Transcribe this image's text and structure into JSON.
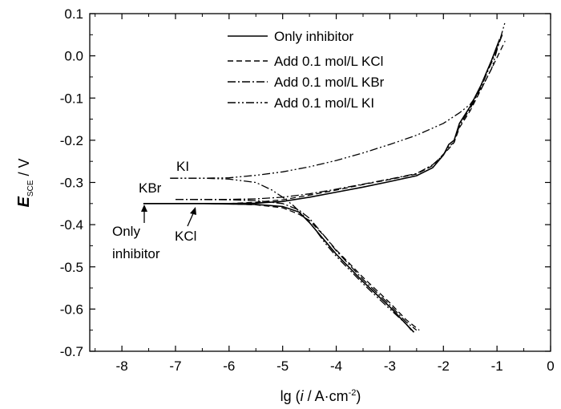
{
  "chart_data": {
    "type": "line",
    "xlabel_prefix": "lg (",
    "xlabel_italic": "i",
    "xlabel_mid": " / A·cm",
    "xlabel_sup": "-2",
    "xlabel_suffix": ")",
    "ylabel_main": "E",
    "ylabel_sub": "SCE",
    "ylabel_suffix": " / V",
    "xlim": [
      -8.6,
      0
    ],
    "ylim": [
      -0.7,
      0.1
    ],
    "xticks": [
      -8,
      -7,
      -6,
      -5,
      -4,
      -3,
      -2,
      -1,
      0
    ],
    "yticks": [
      0.1,
      0.0,
      -0.1,
      -0.2,
      -0.3,
      -0.4,
      -0.5,
      -0.6,
      -0.7
    ],
    "xtick_labels": [
      "-8",
      "-7",
      "-6",
      "-5",
      "-4",
      "-3",
      "-2",
      "-1",
      "0"
    ],
    "ytick_labels": [
      "0.1",
      "0.0",
      "-0.1",
      "-0.2",
      "-0.3",
      "-0.4",
      "-0.5",
      "-0.6",
      "-0.7"
    ],
    "grid": false,
    "legend_position": "top-right",
    "series": [
      {
        "name": "Only inhibitor",
        "style": "solid",
        "anodic": [
          [
            -7.6,
            -0.35
          ],
          [
            -7.0,
            -0.35
          ],
          [
            -6.0,
            -0.35
          ],
          [
            -5.5,
            -0.349
          ],
          [
            -5.0,
            -0.345
          ],
          [
            -4.5,
            -0.335
          ],
          [
            -4.0,
            -0.323
          ],
          [
            -3.5,
            -0.311
          ],
          [
            -3.0,
            -0.298
          ],
          [
            -2.5,
            -0.284
          ],
          [
            -2.2,
            -0.265
          ],
          [
            -2.0,
            -0.235
          ],
          [
            -1.9,
            -0.21
          ],
          [
            -1.8,
            -0.2
          ],
          [
            -1.7,
            -0.16
          ],
          [
            -1.5,
            -0.12
          ],
          [
            -1.3,
            -0.07
          ],
          [
            -1.1,
            -0.01
          ],
          [
            -0.95,
            0.04
          ]
        ],
        "cathodic": [
          [
            -7.6,
            -0.35
          ],
          [
            -6.5,
            -0.35
          ],
          [
            -5.5,
            -0.352
          ],
          [
            -5.0,
            -0.357
          ],
          [
            -4.7,
            -0.37
          ],
          [
            -4.5,
            -0.395
          ],
          [
            -4.2,
            -0.44
          ],
          [
            -4.0,
            -0.47
          ],
          [
            -3.5,
            -0.535
          ],
          [
            -3.0,
            -0.595
          ],
          [
            -2.7,
            -0.635
          ],
          [
            -2.55,
            -0.655
          ]
        ]
      },
      {
        "name": "Add 0.1 mol/L KCl",
        "style": "dash",
        "anodic": [
          [
            -6.5,
            -0.35
          ],
          [
            -6.0,
            -0.35
          ],
          [
            -5.5,
            -0.347
          ],
          [
            -5.0,
            -0.341
          ],
          [
            -4.5,
            -0.33
          ],
          [
            -4.0,
            -0.318
          ],
          [
            -3.5,
            -0.305
          ],
          [
            -3.0,
            -0.293
          ],
          [
            -2.5,
            -0.28
          ],
          [
            -2.2,
            -0.26
          ],
          [
            -2.0,
            -0.233
          ],
          [
            -1.9,
            -0.22
          ],
          [
            -1.8,
            -0.205
          ],
          [
            -1.7,
            -0.17
          ],
          [
            -1.5,
            -0.13
          ],
          [
            -1.3,
            -0.08
          ],
          [
            -1.1,
            -0.03
          ],
          [
            -0.85,
            0.035
          ]
        ],
        "cathodic": [
          [
            -6.5,
            -0.35
          ],
          [
            -6.0,
            -0.351
          ],
          [
            -5.5,
            -0.353
          ],
          [
            -5.0,
            -0.36
          ],
          [
            -4.7,
            -0.375
          ],
          [
            -4.5,
            -0.39
          ],
          [
            -4.2,
            -0.43
          ],
          [
            -4.0,
            -0.46
          ],
          [
            -3.5,
            -0.525
          ],
          [
            -3.0,
            -0.585
          ],
          [
            -2.7,
            -0.625
          ],
          [
            -2.45,
            -0.65
          ]
        ]
      },
      {
        "name": "Add 0.1 mol/L KBr",
        "style": "dashdot",
        "anodic": [
          [
            -7.0,
            -0.34
          ],
          [
            -6.0,
            -0.34
          ],
          [
            -5.5,
            -0.339
          ],
          [
            -5.0,
            -0.335
          ],
          [
            -4.5,
            -0.327
          ],
          [
            -4.0,
            -0.316
          ],
          [
            -3.5,
            -0.304
          ],
          [
            -3.0,
            -0.292
          ],
          [
            -2.5,
            -0.279
          ],
          [
            -2.2,
            -0.258
          ],
          [
            -2.0,
            -0.235
          ],
          [
            -1.9,
            -0.215
          ],
          [
            -1.8,
            -0.205
          ],
          [
            -1.7,
            -0.165
          ],
          [
            -1.5,
            -0.125
          ],
          [
            -1.3,
            -0.075
          ],
          [
            -1.1,
            -0.015
          ],
          [
            -0.9,
            0.05
          ]
        ],
        "cathodic": [
          [
            -7.0,
            -0.34
          ],
          [
            -6.0,
            -0.341
          ],
          [
            -5.5,
            -0.343
          ],
          [
            -5.0,
            -0.35
          ],
          [
            -4.7,
            -0.365
          ],
          [
            -4.5,
            -0.385
          ],
          [
            -4.2,
            -0.43
          ],
          [
            -4.0,
            -0.462
          ],
          [
            -3.5,
            -0.53
          ],
          [
            -3.0,
            -0.59
          ],
          [
            -2.7,
            -0.63
          ],
          [
            -2.5,
            -0.65
          ]
        ]
      },
      {
        "name": "Add 0.1 mol/L KI",
        "style": "dashdotdot",
        "anodic": [
          [
            -7.1,
            -0.29
          ],
          [
            -6.5,
            -0.29
          ],
          [
            -6.0,
            -0.289
          ],
          [
            -5.5,
            -0.283
          ],
          [
            -5.0,
            -0.275
          ],
          [
            -4.5,
            -0.263
          ],
          [
            -4.0,
            -0.248
          ],
          [
            -3.5,
            -0.23
          ],
          [
            -3.0,
            -0.21
          ],
          [
            -2.5,
            -0.188
          ],
          [
            -2.0,
            -0.16
          ],
          [
            -1.7,
            -0.135
          ],
          [
            -1.5,
            -0.115
          ],
          [
            -1.3,
            -0.08
          ],
          [
            -1.1,
            -0.03
          ],
          [
            -0.85,
            0.08
          ]
        ],
        "cathodic": [
          [
            -7.1,
            -0.29
          ],
          [
            -6.5,
            -0.29
          ],
          [
            -6.0,
            -0.292
          ],
          [
            -5.5,
            -0.3
          ],
          [
            -5.2,
            -0.318
          ],
          [
            -5.0,
            -0.335
          ],
          [
            -4.8,
            -0.355
          ],
          [
            -4.6,
            -0.38
          ],
          [
            -4.4,
            -0.41
          ],
          [
            -4.2,
            -0.445
          ],
          [
            -4.0,
            -0.475
          ],
          [
            -3.5,
            -0.54
          ],
          [
            -3.0,
            -0.6
          ],
          [
            -2.7,
            -0.635
          ],
          [
            -2.6,
            -0.65
          ]
        ]
      }
    ],
    "annotations": [
      {
        "text": "KI"
      },
      {
        "text": "KBr"
      },
      {
        "text": "Only"
      },
      {
        "text": "inhibitor"
      },
      {
        "text": "KCl"
      }
    ]
  }
}
